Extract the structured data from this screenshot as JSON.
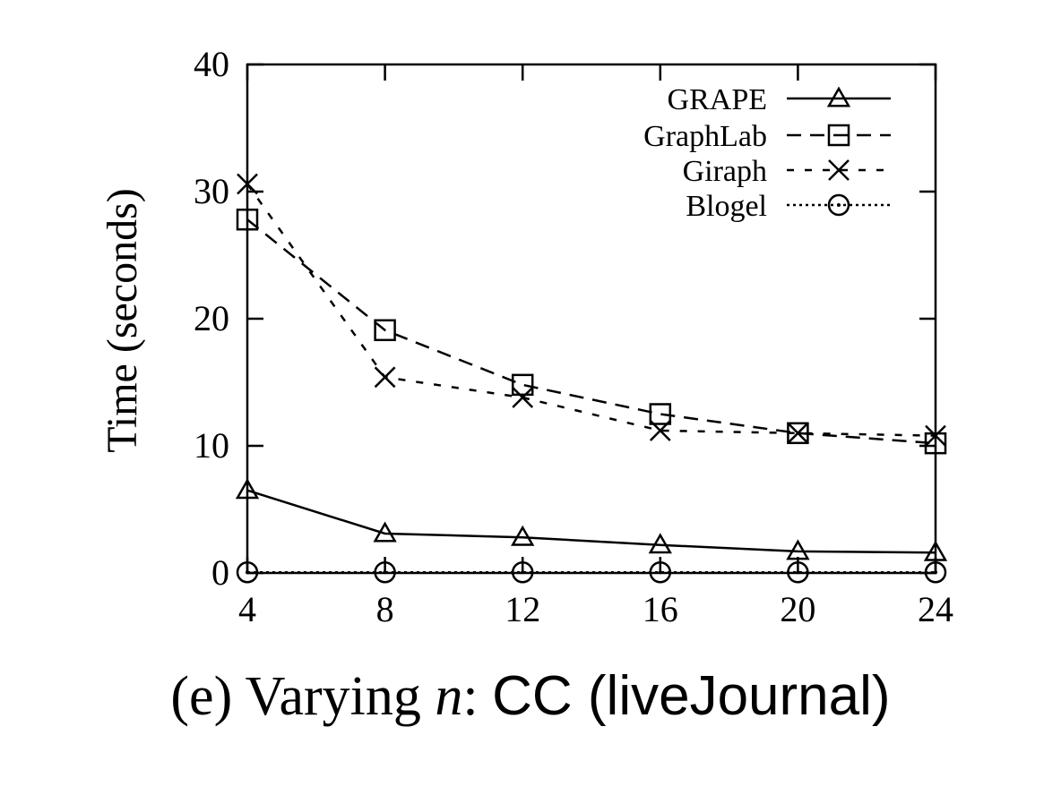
{
  "chart_data": {
    "type": "line",
    "title": "",
    "xlabel": "",
    "ylabel": "Time (seconds)",
    "x": [
      4,
      8,
      12,
      16,
      20,
      24
    ],
    "xlim": [
      4,
      24
    ],
    "ylim": [
      0,
      40
    ],
    "y_ticks": [
      0,
      10,
      20,
      30,
      40
    ],
    "x_ticks": [
      4,
      8,
      12,
      16,
      20,
      24
    ],
    "grid": false,
    "legend_position": "top-right",
    "series": [
      {
        "name": "GRAPE",
        "marker": "triangle",
        "line_style": "solid",
        "values": [
          6.5,
          3.1,
          2.8,
          2.2,
          1.7,
          1.6
        ]
      },
      {
        "name": "GraphLab",
        "marker": "square",
        "line_style": "dashed",
        "values": [
          27.8,
          19.1,
          14.8,
          12.5,
          11.0,
          10.2
        ]
      },
      {
        "name": "Giraph",
        "marker": "cross",
        "line_style": "short-dashed",
        "values": [
          30.6,
          15.4,
          13.8,
          11.2,
          11.0,
          10.8
        ]
      },
      {
        "name": "Blogel",
        "marker": "circle",
        "line_style": "dotted",
        "values": [
          0.05,
          0.05,
          0.05,
          0.05,
          0.05,
          0.05
        ]
      }
    ]
  },
  "caption": {
    "prefix": "(e) Varying ",
    "variable": "n",
    "colon": ": ",
    "text": "CC (liveJournal)"
  }
}
